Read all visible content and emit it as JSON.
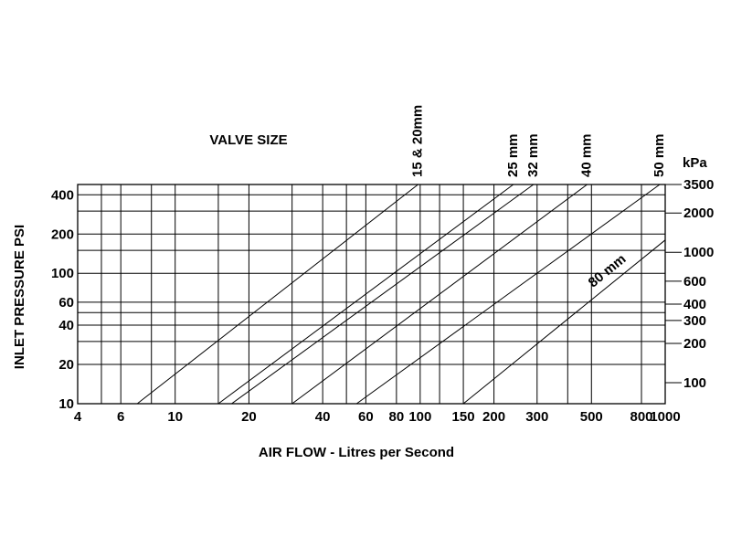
{
  "chart_data": {
    "type": "line",
    "title": "VALVE SIZE",
    "xlabel": "AIR FLOW  - Litres per Second",
    "ylabel": "INLET PRESSURE PSI",
    "y2label": "kPa",
    "x_scale": "log",
    "y_scale": "log",
    "xlim": [
      4,
      1000
    ],
    "ylim": [
      10,
      480
    ],
    "grid": true,
    "x_ticks": [
      {
        "value": 4,
        "label": "4"
      },
      {
        "value": 6,
        "label": "6"
      },
      {
        "value": 10,
        "label": "10"
      },
      {
        "value": 20,
        "label": "20"
      },
      {
        "value": 40,
        "label": "40"
      },
      {
        "value": 60,
        "label": "60"
      },
      {
        "value": 80,
        "label": "80"
      },
      {
        "value": 100,
        "label": "100"
      },
      {
        "value": 150,
        "label": "150"
      },
      {
        "value": 200,
        "label": "200"
      },
      {
        "value": 300,
        "label": "300"
      },
      {
        "value": 500,
        "label": "500"
      },
      {
        "value": 800,
        "label": "800"
      },
      {
        "value": 1000,
        "label": "1000"
      }
    ],
    "x_minor_grid": [
      5,
      8,
      15,
      30,
      50,
      120,
      400
    ],
    "y_ticks": [
      {
        "value": 10,
        "label": "10"
      },
      {
        "value": 20,
        "label": "20"
      },
      {
        "value": 40,
        "label": "40"
      },
      {
        "value": 60,
        "label": "60"
      },
      {
        "value": 100,
        "label": "100"
      },
      {
        "value": 200,
        "label": "200"
      },
      {
        "value": 400,
        "label": "400"
      }
    ],
    "y_minor_grid": [
      30,
      50,
      150,
      300
    ],
    "y2_ticks": [
      {
        "kpa": 100,
        "label": "100"
      },
      {
        "kpa": 200,
        "label": "200"
      },
      {
        "kpa": 300,
        "label": "300"
      },
      {
        "kpa": 400,
        "label": "400"
      },
      {
        "kpa": 600,
        "label": "600"
      },
      {
        "kpa": 1000,
        "label": "1000"
      },
      {
        "kpa": 2000,
        "label": "2000"
      },
      {
        "kpa": 3500,
        "label": "3500"
      }
    ],
    "series": [
      {
        "name": "15 & 20mm",
        "x": [
          7,
          98
        ],
        "y": [
          10,
          480
        ],
        "label_pos": "top"
      },
      {
        "name": "25 mm",
        "x": [
          15,
          240
        ],
        "y": [
          10,
          480
        ],
        "label_pos": "top"
      },
      {
        "name": "32 mm",
        "x": [
          17,
          290
        ],
        "y": [
          10,
          480
        ],
        "label_pos": "top"
      },
      {
        "name": "40 mm",
        "x": [
          30,
          480
        ],
        "y": [
          10,
          480
        ],
        "label_pos": "top"
      },
      {
        "name": "50 mm",
        "x": [
          55,
          950
        ],
        "y": [
          10,
          480
        ],
        "label_pos": "top"
      },
      {
        "name": "80 mm",
        "x": [
          150,
          1000
        ],
        "y": [
          10,
          180
        ],
        "label_pos": "inline"
      }
    ]
  }
}
